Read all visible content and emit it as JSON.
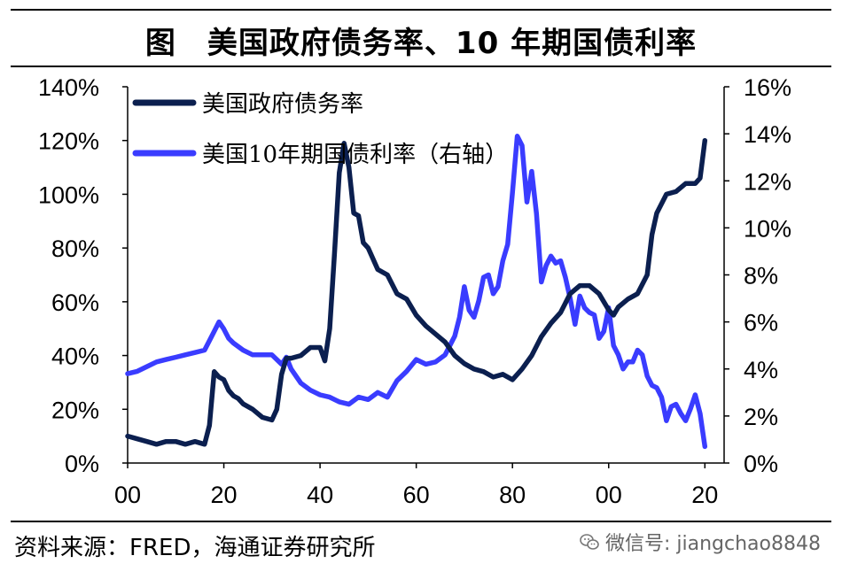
{
  "title": "图　美国政府债务率、10 年期国债利率",
  "source": "资料来源：FRED，海通证券研究所",
  "watermark": "微信号: jiangchao8848",
  "chart_data": {
    "type": "line",
    "x_tick_labels": [
      "00",
      "20",
      "40",
      "60",
      "80",
      "00",
      "20"
    ],
    "x_ticks": [
      1900,
      1920,
      1940,
      1960,
      1980,
      2000,
      2020
    ],
    "xlim": [
      1900,
      2024
    ],
    "y_left": {
      "ticks": [
        "0%",
        "20%",
        "40%",
        "60%",
        "80%",
        "100%",
        "120%",
        "140%"
      ],
      "ylim": [
        0,
        140
      ]
    },
    "y_right": {
      "ticks": [
        "0%",
        "2%",
        "4%",
        "6%",
        "8%",
        "10%",
        "12%",
        "14%",
        "16%"
      ],
      "ylim": [
        0,
        16
      ]
    },
    "legend_position": "top-left",
    "colors": {
      "debt": "#0b1f4f",
      "yield": "#3a3cff"
    },
    "series": [
      {
        "name": "美国政府债务率",
        "axis": "left",
        "x": [
          1900,
          1902,
          1904,
          1906,
          1908,
          1910,
          1912,
          1914,
          1916,
          1917,
          1918,
          1919,
          1920,
          1921,
          1922,
          1923,
          1924,
          1926,
          1928,
          1930,
          1931,
          1932,
          1933,
          1934,
          1936,
          1938,
          1940,
          1941,
          1942,
          1943,
          1944,
          1945,
          1946,
          1947,
          1948,
          1949,
          1950,
          1952,
          1954,
          1956,
          1958,
          1960,
          1962,
          1964,
          1966,
          1968,
          1970,
          1972,
          1974,
          1976,
          1978,
          1980,
          1982,
          1984,
          1986,
          1988,
          1990,
          1992,
          1994,
          1996,
          1998,
          2000,
          2001,
          2002,
          2004,
          2006,
          2008,
          2009,
          2010,
          2012,
          2014,
          2016,
          2018,
          2019,
          2020
        ],
        "values": [
          10,
          9,
          8,
          7,
          8,
          8,
          7,
          8,
          7,
          14,
          34,
          32,
          31,
          27,
          25,
          24,
          22,
          20,
          17,
          16,
          20,
          33,
          39,
          39,
          40,
          43,
          43,
          38,
          50,
          78,
          108,
          119,
          110,
          93,
          92,
          82,
          80,
          72,
          70,
          63,
          61,
          55,
          51,
          48,
          45,
          40,
          37,
          35,
          34,
          32,
          33,
          31,
          35,
          40,
          47,
          52,
          56,
          63,
          66,
          66,
          63,
          57,
          55,
          58,
          61,
          63,
          70,
          85,
          93,
          100,
          101,
          104,
          104,
          106,
          120
        ]
      },
      {
        "name": "美国10年期国债利率（右轴）",
        "axis": "right",
        "x": [
          1900,
          1902,
          1904,
          1906,
          1908,
          1910,
          1912,
          1914,
          1916,
          1918,
          1919,
          1920,
          1921,
          1922,
          1924,
          1926,
          1928,
          1930,
          1932,
          1933,
          1934,
          1936,
          1938,
          1940,
          1942,
          1944,
          1946,
          1948,
          1950,
          1952,
          1954,
          1956,
          1958,
          1960,
          1962,
          1964,
          1966,
          1968,
          1969,
          1970,
          1971,
          1972,
          1973,
          1974,
          1975,
          1976,
          1977,
          1978,
          1979,
          1980,
          1981,
          1982,
          1983,
          1984,
          1985,
          1986,
          1987,
          1988,
          1989,
          1990,
          1991,
          1992,
          1993,
          1994,
          1995,
          1996,
          1997,
          1998,
          1999,
          2000,
          2001,
          2002,
          2003,
          2004,
          2005,
          2006,
          2007,
          2008,
          2009,
          2010,
          2011,
          2012,
          2013,
          2014,
          2015,
          2016,
          2017,
          2018,
          2019,
          2020
        ],
        "values": [
          3.8,
          3.9,
          4.1,
          4.3,
          4.4,
          4.5,
          4.6,
          4.7,
          4.8,
          5.6,
          6.0,
          5.7,
          5.3,
          5.1,
          4.8,
          4.6,
          4.6,
          4.6,
          4.2,
          4.5,
          4.0,
          3.4,
          3.1,
          2.9,
          2.8,
          2.6,
          2.5,
          2.8,
          2.7,
          3.0,
          2.8,
          3.5,
          3.9,
          4.4,
          4.2,
          4.3,
          4.6,
          5.4,
          6.2,
          7.5,
          6.5,
          6.2,
          6.9,
          7.9,
          8.0,
          7.2,
          7.5,
          8.6,
          9.3,
          11.5,
          13.9,
          13.5,
          11.1,
          12.4,
          10.6,
          7.7,
          8.4,
          8.8,
          8.5,
          8.6,
          7.9,
          7.0,
          5.9,
          7.1,
          6.6,
          6.4,
          6.3,
          5.3,
          5.6,
          6.6,
          5.0,
          4.6,
          4.0,
          4.3,
          4.3,
          4.8,
          4.6,
          3.7,
          3.3,
          3.2,
          2.8,
          1.8,
          2.4,
          2.5,
          2.1,
          1.8,
          2.3,
          2.9,
          2.1,
          0.7
        ]
      }
    ]
  }
}
